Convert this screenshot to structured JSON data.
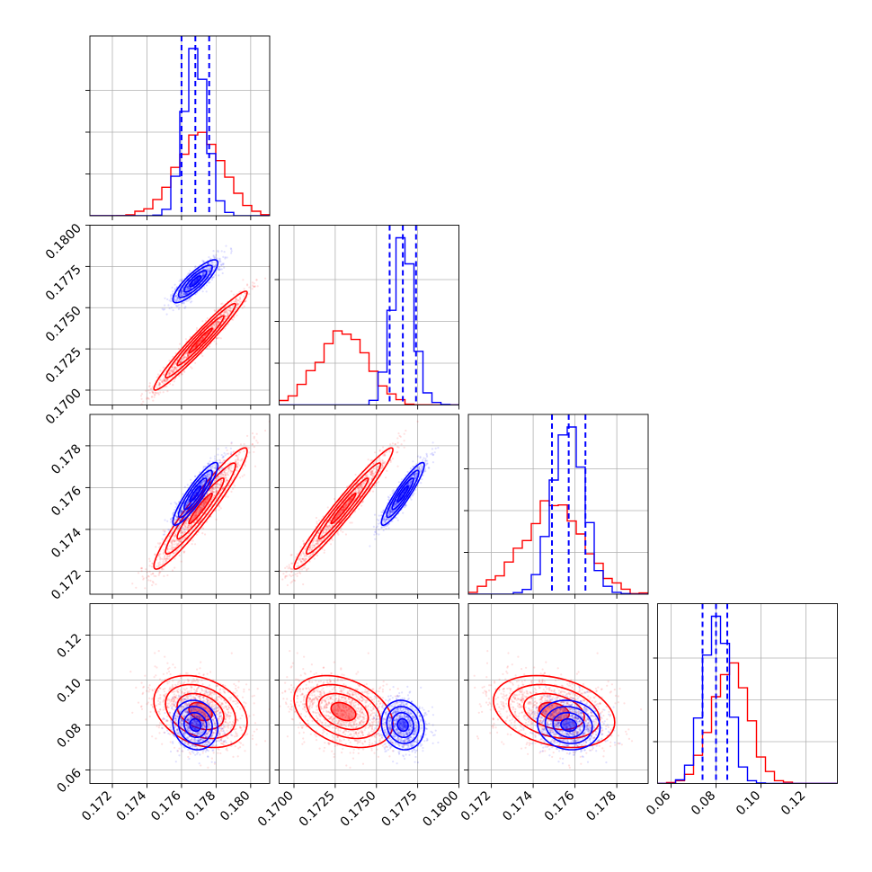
{
  "colors": {
    "series_a": "#ff0000",
    "series_b": "#0000ff",
    "grid": "#b0b0b0",
    "frame": "#000000"
  },
  "chart_data": {
    "type": "corner",
    "grid": true,
    "params": [
      {
        "range": [
          0.1707,
          0.1811
        ],
        "ticks": [
          "0.172",
          "0.174",
          "0.176",
          "0.178",
          "0.180"
        ],
        "tick_values": [
          0.172,
          0.174,
          0.176,
          0.178,
          0.18
        ]
      },
      {
        "range": [
          0.1691,
          0.18
        ],
        "ticks": [
          "0.1700",
          "0.1725",
          "0.1750",
          "0.1775",
          "0.1800"
        ],
        "tick_values": [
          0.17,
          0.1725,
          0.175,
          0.1775,
          0.18
        ]
      },
      {
        "range": [
          0.1709,
          0.1795
        ],
        "ticks": [
          "0.172",
          "0.174",
          "0.176",
          "0.178"
        ],
        "tick_values": [
          0.172,
          0.174,
          0.176,
          0.178
        ]
      },
      {
        "range": [
          0.054,
          0.134
        ],
        "ticks": [
          "0.06",
          "0.08",
          "0.10",
          "0.12"
        ],
        "tick_values": [
          0.06,
          0.08,
          0.1,
          0.12
        ]
      }
    ],
    "series": [
      {
        "color": "#ff0000",
        "mean": [
          0.1771,
          0.173,
          0.175,
          0.086
        ],
        "sd": [
          0.00135,
          0.0015,
          0.00145,
          0.008
        ],
        "corr": [
          [
            1,
            0.97,
            0.95,
            -0.3
          ],
          [
            0.97,
            1,
            0.97,
            -0.35
          ],
          [
            0.95,
            0.97,
            1,
            -0.3
          ],
          [
            -0.3,
            -0.35,
            -0.3,
            1
          ]
        ]
      },
      {
        "color": "#0000ff",
        "mean": [
          0.1768,
          0.1766,
          0.1757,
          0.08
        ],
        "sd": [
          0.00065,
          0.00065,
          0.00075,
          0.0055
        ],
        "corr": [
          [
            1,
            0.85,
            0.9,
            -0.1
          ],
          [
            0.85,
            1,
            0.92,
            -0.1
          ],
          [
            0.9,
            0.92,
            1,
            -0.1
          ],
          [
            -0.1,
            -0.1,
            -0.1,
            1
          ]
        ]
      }
    ],
    "quantiles_blue": [
      [
        0.176,
        0.1768,
        0.1776
      ],
      [
        0.1758,
        0.1766,
        0.1774
      ],
      [
        0.1749,
        0.1757,
        0.1765
      ],
      [
        0.074,
        0.08,
        0.085
      ]
    ]
  }
}
